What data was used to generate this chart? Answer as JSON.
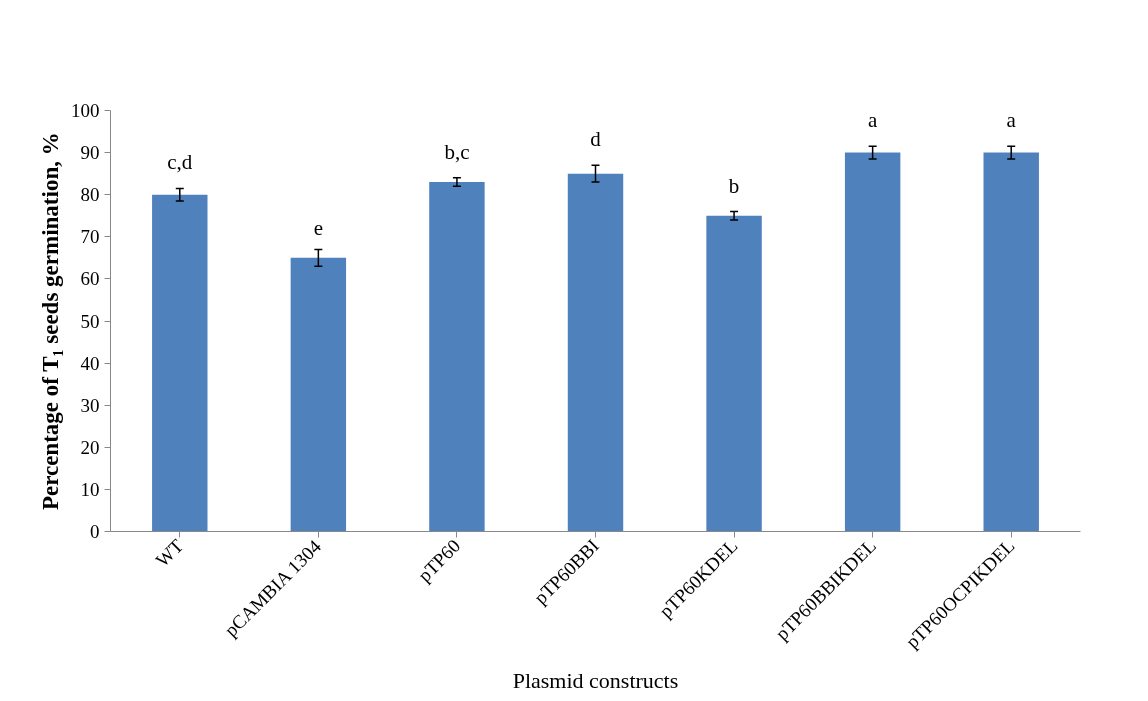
{
  "chart_data": {
    "type": "bar",
    "xlabel": "Plasmid constructs",
    "ylabel": "Percentage of T₁ seeds germination, %",
    "categories": [
      "WT",
      "pCAMBIA 1304",
      "pTP60",
      "pTP60BBI",
      "pTP60KDEL",
      "pTP60BBIKDEL",
      "pTP60OCPIKDEL"
    ],
    "values": [
      80,
      65,
      83,
      85,
      75,
      90,
      90
    ],
    "errors": [
      1.5,
      2,
      1,
      2,
      1,
      1.5,
      1.5
    ],
    "color": "#4f81bd",
    "ylim": [
      0,
      100
    ],
    "yticks": [
      0,
      10,
      20,
      30,
      40,
      50,
      60,
      70,
      80,
      90,
      100
    ],
    "grid": false,
    "annotations": [
      {
        "text": "c,d",
        "x": "WT",
        "y": 80
      },
      {
        "text": "e",
        "x": "pCAMBIA 1304",
        "y": 65
      },
      {
        "text": "b,c",
        "x": "pTP60",
        "y": 83
      },
      {
        "text": "d",
        "x": "pTP60BBI",
        "y": 85
      },
      {
        "text": "b",
        "x": "pTP60KDEL",
        "y": 75
      },
      {
        "text": "a",
        "x": "pTP60BBIKDEL",
        "y": 90
      },
      {
        "text": "a",
        "x": "pTP60OCPIKDEL",
        "y": 90
      }
    ]
  }
}
